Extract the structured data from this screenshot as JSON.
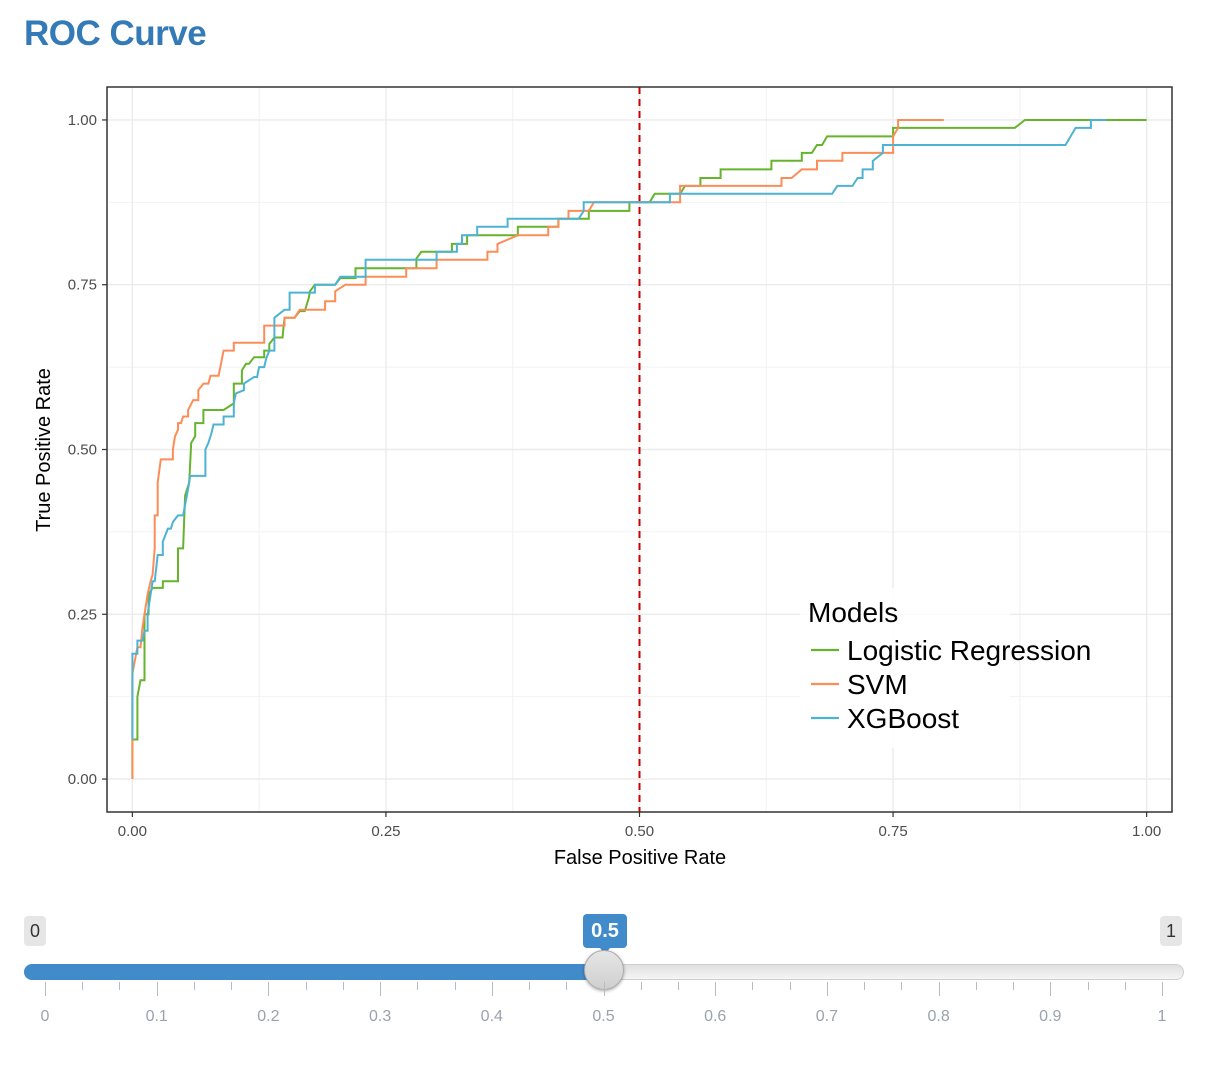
{
  "page": {
    "title": "ROC Curve"
  },
  "chart_data": {
    "type": "line",
    "xlabel": "False Positive Rate",
    "ylabel": "True Positive Rate",
    "xlim": [
      -0.025,
      1.025
    ],
    "ylim": [
      -0.05,
      1.05
    ],
    "x_ticks": [
      "0.00",
      "0.25",
      "0.50",
      "0.75",
      "1.00"
    ],
    "y_ticks": [
      "0.00",
      "0.25",
      "0.50",
      "0.75",
      "1.00"
    ],
    "grid": true,
    "reference_line": {
      "x": 0.5,
      "color": "#cc0000",
      "style": "dashed"
    },
    "legend": {
      "title": "Models",
      "position": "bottom-right"
    },
    "series": [
      {
        "name": "Logistic Regression",
        "color": "#66b32e",
        "points": [
          [
            0,
            0
          ],
          [
            0,
            0.06
          ],
          [
            0.005,
            0.06
          ],
          [
            0.005,
            0.125
          ],
          [
            0.008,
            0.15
          ],
          [
            0.012,
            0.15
          ],
          [
            0.012,
            0.25
          ],
          [
            0.016,
            0.25
          ],
          [
            0.016,
            0.28
          ],
          [
            0.02,
            0.29
          ],
          [
            0.03,
            0.29
          ],
          [
            0.03,
            0.3
          ],
          [
            0.045,
            0.3
          ],
          [
            0.045,
            0.35
          ],
          [
            0.05,
            0.35
          ],
          [
            0.052,
            0.43
          ],
          [
            0.056,
            0.45
          ],
          [
            0.058,
            0.51
          ],
          [
            0.062,
            0.52
          ],
          [
            0.062,
            0.54
          ],
          [
            0.07,
            0.54
          ],
          [
            0.07,
            0.56
          ],
          [
            0.09,
            0.56
          ],
          [
            0.1,
            0.57
          ],
          [
            0.1,
            0.6
          ],
          [
            0.108,
            0.6
          ],
          [
            0.108,
            0.62
          ],
          [
            0.112,
            0.63
          ],
          [
            0.115,
            0.63
          ],
          [
            0.12,
            0.64
          ],
          [
            0.13,
            0.64
          ],
          [
            0.13,
            0.65
          ],
          [
            0.135,
            0.65
          ],
          [
            0.135,
            0.66
          ],
          [
            0.14,
            0.67
          ],
          [
            0.148,
            0.67
          ],
          [
            0.15,
            0.7
          ],
          [
            0.16,
            0.7
          ],
          [
            0.165,
            0.71
          ],
          [
            0.17,
            0.71
          ],
          [
            0.172,
            0.72
          ],
          [
            0.174,
            0.73
          ],
          [
            0.175,
            0.74
          ],
          [
            0.18,
            0.75
          ],
          [
            0.2,
            0.75
          ],
          [
            0.205,
            0.76
          ],
          [
            0.22,
            0.76
          ],
          [
            0.22,
            0.775
          ],
          [
            0.28,
            0.775
          ],
          [
            0.28,
            0.79
          ],
          [
            0.285,
            0.8
          ],
          [
            0.3,
            0.8
          ],
          [
            0.315,
            0.8
          ],
          [
            0.315,
            0.812
          ],
          [
            0.33,
            0.812
          ],
          [
            0.33,
            0.825
          ],
          [
            0.38,
            0.825
          ],
          [
            0.38,
            0.838
          ],
          [
            0.42,
            0.838
          ],
          [
            0.42,
            0.85
          ],
          [
            0.45,
            0.85
          ],
          [
            0.45,
            0.862
          ],
          [
            0.49,
            0.862
          ],
          [
            0.49,
            0.875
          ],
          [
            0.51,
            0.875
          ],
          [
            0.515,
            0.888
          ],
          [
            0.54,
            0.888
          ],
          [
            0.545,
            0.9
          ],
          [
            0.56,
            0.9
          ],
          [
            0.56,
            0.912
          ],
          [
            0.58,
            0.912
          ],
          [
            0.58,
            0.925
          ],
          [
            0.63,
            0.925
          ],
          [
            0.63,
            0.938
          ],
          [
            0.66,
            0.938
          ],
          [
            0.66,
            0.95
          ],
          [
            0.67,
            0.95
          ],
          [
            0.675,
            0.962
          ],
          [
            0.68,
            0.962
          ],
          [
            0.685,
            0.975
          ],
          [
            0.75,
            0.975
          ],
          [
            0.75,
            0.988
          ],
          [
            0.87,
            0.988
          ],
          [
            0.88,
            1.0
          ],
          [
            1.0,
            1.0
          ]
        ]
      },
      {
        "name": "SVM",
        "color": "#fc8d59",
        "points": [
          [
            0,
            0
          ],
          [
            0,
            0.16
          ],
          [
            0.005,
            0.2
          ],
          [
            0.008,
            0.2
          ],
          [
            0.01,
            0.23
          ],
          [
            0.012,
            0.25
          ],
          [
            0.015,
            0.28
          ],
          [
            0.018,
            0.3
          ],
          [
            0.02,
            0.31
          ],
          [
            0.022,
            0.35
          ],
          [
            0.022,
            0.4
          ],
          [
            0.025,
            0.4
          ],
          [
            0.025,
            0.45
          ],
          [
            0.028,
            0.485
          ],
          [
            0.04,
            0.485
          ],
          [
            0.04,
            0.5
          ],
          [
            0.042,
            0.52
          ],
          [
            0.045,
            0.53
          ],
          [
            0.045,
            0.54
          ],
          [
            0.048,
            0.54
          ],
          [
            0.05,
            0.55
          ],
          [
            0.055,
            0.55
          ],
          [
            0.055,
            0.56
          ],
          [
            0.06,
            0.575
          ],
          [
            0.065,
            0.575
          ],
          [
            0.065,
            0.59
          ],
          [
            0.07,
            0.6
          ],
          [
            0.075,
            0.6
          ],
          [
            0.077,
            0.612
          ],
          [
            0.085,
            0.612
          ],
          [
            0.09,
            0.65
          ],
          [
            0.1,
            0.65
          ],
          [
            0.1,
            0.662
          ],
          [
            0.13,
            0.662
          ],
          [
            0.13,
            0.688
          ],
          [
            0.15,
            0.688
          ],
          [
            0.15,
            0.7
          ],
          [
            0.16,
            0.7
          ],
          [
            0.165,
            0.712
          ],
          [
            0.19,
            0.712
          ],
          [
            0.19,
            0.725
          ],
          [
            0.2,
            0.725
          ],
          [
            0.2,
            0.74
          ],
          [
            0.21,
            0.75
          ],
          [
            0.23,
            0.75
          ],
          [
            0.23,
            0.762
          ],
          [
            0.27,
            0.762
          ],
          [
            0.27,
            0.775
          ],
          [
            0.3,
            0.775
          ],
          [
            0.3,
            0.788
          ],
          [
            0.35,
            0.788
          ],
          [
            0.35,
            0.8
          ],
          [
            0.36,
            0.8
          ],
          [
            0.36,
            0.812
          ],
          [
            0.38,
            0.825
          ],
          [
            0.41,
            0.825
          ],
          [
            0.41,
            0.838
          ],
          [
            0.42,
            0.838
          ],
          [
            0.42,
            0.85
          ],
          [
            0.43,
            0.85
          ],
          [
            0.43,
            0.862
          ],
          [
            0.45,
            0.862
          ],
          [
            0.455,
            0.875
          ],
          [
            0.54,
            0.875
          ],
          [
            0.54,
            0.9
          ],
          [
            0.64,
            0.9
          ],
          [
            0.64,
            0.912
          ],
          [
            0.65,
            0.912
          ],
          [
            0.66,
            0.925
          ],
          [
            0.675,
            0.925
          ],
          [
            0.675,
            0.938
          ],
          [
            0.7,
            0.938
          ],
          [
            0.7,
            0.95
          ],
          [
            0.75,
            0.95
          ],
          [
            0.75,
            0.975
          ],
          [
            0.755,
            0.988
          ],
          [
            0.755,
            1.0
          ],
          [
            0.8,
            1.0
          ]
        ]
      },
      {
        "name": "XGBoost",
        "color": "#4eb3d3",
        "points": [
          [
            0,
            0.06
          ],
          [
            0,
            0.19
          ],
          [
            0.005,
            0.19
          ],
          [
            0.005,
            0.21
          ],
          [
            0.01,
            0.21
          ],
          [
            0.012,
            0.225
          ],
          [
            0.015,
            0.225
          ],
          [
            0.015,
            0.25
          ],
          [
            0.02,
            0.3
          ],
          [
            0.022,
            0.3
          ],
          [
            0.025,
            0.34
          ],
          [
            0.03,
            0.34
          ],
          [
            0.03,
            0.36
          ],
          [
            0.035,
            0.38
          ],
          [
            0.038,
            0.38
          ],
          [
            0.04,
            0.39
          ],
          [
            0.045,
            0.4
          ],
          [
            0.05,
            0.4
          ],
          [
            0.05,
            0.4
          ],
          [
            0.055,
            0.44
          ],
          [
            0.057,
            0.46
          ],
          [
            0.072,
            0.46
          ],
          [
            0.072,
            0.5
          ],
          [
            0.075,
            0.51
          ],
          [
            0.078,
            0.525
          ],
          [
            0.08,
            0.538
          ],
          [
            0.09,
            0.538
          ],
          [
            0.09,
            0.55
          ],
          [
            0.1,
            0.55
          ],
          [
            0.1,
            0.57
          ],
          [
            0.102,
            0.585
          ],
          [
            0.11,
            0.59
          ],
          [
            0.11,
            0.6
          ],
          [
            0.12,
            0.61
          ],
          [
            0.123,
            0.61
          ],
          [
            0.125,
            0.625
          ],
          [
            0.13,
            0.625
          ],
          [
            0.132,
            0.638
          ],
          [
            0.135,
            0.65
          ],
          [
            0.14,
            0.65
          ],
          [
            0.14,
            0.7
          ],
          [
            0.15,
            0.712
          ],
          [
            0.155,
            0.712
          ],
          [
            0.155,
            0.738
          ],
          [
            0.18,
            0.738
          ],
          [
            0.18,
            0.75
          ],
          [
            0.2,
            0.75
          ],
          [
            0.205,
            0.762
          ],
          [
            0.23,
            0.762
          ],
          [
            0.23,
            0.788
          ],
          [
            0.3,
            0.788
          ],
          [
            0.3,
            0.8
          ],
          [
            0.32,
            0.8
          ],
          [
            0.32,
            0.812
          ],
          [
            0.325,
            0.812
          ],
          [
            0.325,
            0.825
          ],
          [
            0.34,
            0.825
          ],
          [
            0.34,
            0.838
          ],
          [
            0.37,
            0.838
          ],
          [
            0.37,
            0.85
          ],
          [
            0.44,
            0.85
          ],
          [
            0.445,
            0.862
          ],
          [
            0.445,
            0.875
          ],
          [
            0.5,
            0.875
          ],
          [
            0.53,
            0.875
          ],
          [
            0.53,
            0.888
          ],
          [
            0.69,
            0.888
          ],
          [
            0.695,
            0.9
          ],
          [
            0.71,
            0.9
          ],
          [
            0.715,
            0.912
          ],
          [
            0.72,
            0.912
          ],
          [
            0.72,
            0.925
          ],
          [
            0.73,
            0.925
          ],
          [
            0.73,
            0.938
          ],
          [
            0.74,
            0.95
          ],
          [
            0.74,
            0.962
          ],
          [
            0.92,
            0.962
          ],
          [
            0.925,
            0.975
          ],
          [
            0.93,
            0.988
          ],
          [
            0.945,
            0.988
          ],
          [
            0.945,
            1.0
          ],
          [
            0.96,
            1.0
          ]
        ]
      }
    ]
  },
  "slider": {
    "min_label": "0",
    "max_label": "1",
    "value_label": "0.5",
    "min": 0,
    "max": 1,
    "value": 0.5,
    "grid_labels": [
      "0",
      "0.1",
      "0.2",
      "0.3",
      "0.4",
      "0.5",
      "0.6",
      "0.7",
      "0.8",
      "0.9",
      "1"
    ],
    "accent_color": "#428bca"
  }
}
